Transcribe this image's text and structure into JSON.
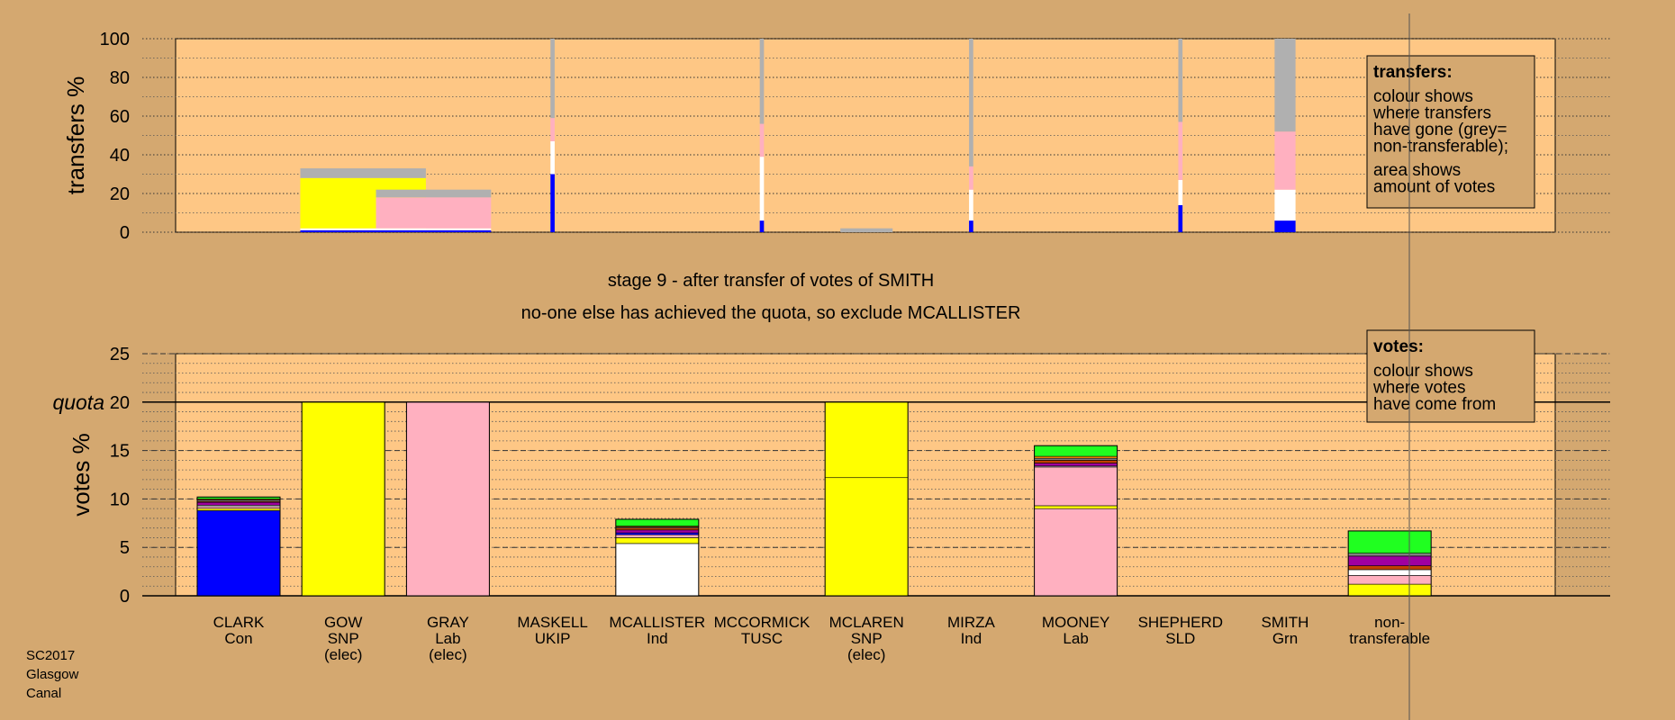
{
  "colors": {
    "background": "#d4a870",
    "plot_background": "#fec785",
    "CLARK": "#0000ff",
    "GOW": "#ffff00",
    "GRAY": "#ffb0c0",
    "MASKELL": "#a000a0",
    "MCALLISTER": "#ffffff",
    "MCCORMICK": "#c04000",
    "MCLAREN": "#ffff00",
    "MIRZA": "#808080",
    "MOONEY": "#ffb0c0",
    "SHEPHERD": "#ff9000",
    "SMITH": "#20ff20",
    "non-transferable": "#b0b0b0"
  },
  "stage_title": "stage 9 - after transfer of votes of SMITH",
  "stage_subtitle": "no-one else has achieved the quota, so exclude MCALLISTER",
  "footer": [
    "SC2017",
    "Glasgow",
    "Canal"
  ],
  "chart_data": [
    {
      "type": "bar",
      "name": "transfers",
      "ylabel": "transfers %",
      "ylim": [
        0,
        100
      ],
      "yticks": [
        0,
        20,
        40,
        60,
        80,
        100
      ],
      "grid": true,
      "legend": {
        "placement": "top-right",
        "title": "transfers:",
        "lines": [
          "colour shows",
          "where transfers",
          "have gone (grey=",
          "non-transferable);",
          "area shows",
          "amount of votes"
        ]
      },
      "note": "bar width = transfer size (votes moved), height = percentage",
      "bars": [
        {
          "source": "GOW",
          "pos": 1,
          "width": 1.2,
          "segments": [
            {
              "to": "CLARK",
              "value": 1
            },
            {
              "to": "MCALLISTER",
              "value": 1
            },
            {
              "to": "GOW",
              "value": 26
            },
            {
              "to": "non-transferable",
              "value": 5
            }
          ]
        },
        {
          "source": "GRAY",
          "pos": 2,
          "width": 1.1,
          "segments": [
            {
              "to": "CLARK",
              "value": 1
            },
            {
              "to": "MCALLISTER",
              "value": 1
            },
            {
              "to": "GRAY",
              "value": 16
            },
            {
              "to": "non-transferable",
              "value": 4
            }
          ]
        },
        {
          "source": "MASKELL",
          "pos": 3,
          "width": 0.04,
          "segments": [
            {
              "to": "CLARK",
              "value": 30
            },
            {
              "to": "MCALLISTER",
              "value": 17
            },
            {
              "to": "GRAY",
              "value": 12
            },
            {
              "to": "non-transferable",
              "value": 41
            }
          ]
        },
        {
          "source": "MCCORMICK",
          "pos": 5,
          "width": 0.04,
          "segments": [
            {
              "to": "CLARK",
              "value": 6
            },
            {
              "to": "MCALLISTER",
              "value": 33
            },
            {
              "to": "GRAY",
              "value": 17
            },
            {
              "to": "non-transferable",
              "value": 44
            }
          ]
        },
        {
          "source": "MCLAREN",
          "pos": 6,
          "width": 0.5,
          "segments": [
            {
              "to": "non-transferable",
              "value": 2
            }
          ]
        },
        {
          "source": "MIRZA",
          "pos": 7,
          "width": 0.04,
          "segments": [
            {
              "to": "CLARK",
              "value": 6
            },
            {
              "to": "MCALLISTER",
              "value": 16
            },
            {
              "to": "GRAY",
              "value": 12
            },
            {
              "to": "non-transferable",
              "value": 66
            }
          ]
        },
        {
          "source": "SHEPHERD",
          "pos": 9,
          "width": 0.04,
          "segments": [
            {
              "to": "CLARK",
              "value": 14
            },
            {
              "to": "MCALLISTER",
              "value": 13
            },
            {
              "to": "GRAY",
              "value": 30
            },
            {
              "to": "non-transferable",
              "value": 43
            }
          ]
        },
        {
          "source": "SMITH",
          "pos": 10,
          "width": 0.2,
          "segments": [
            {
              "to": "CLARK",
              "value": 6
            },
            {
              "to": "MCALLISTER",
              "value": 16
            },
            {
              "to": "GRAY",
              "value": 30
            },
            {
              "to": "non-transferable",
              "value": 48
            }
          ]
        }
      ]
    },
    {
      "type": "bar",
      "name": "votes",
      "ylabel": "votes %",
      "ylim": [
        0,
        25
      ],
      "yticks": [
        0,
        5,
        10,
        15,
        20,
        25
      ],
      "quota": 20,
      "quota_label": "quota",
      "grid": true,
      "legend": {
        "placement": "top-right",
        "title": "votes:",
        "lines": [
          "colour shows",
          "where votes",
          "have come from"
        ]
      },
      "categories": [
        {
          "name": "CLARK",
          "party": "Con",
          "status": ""
        },
        {
          "name": "GOW",
          "party": "SNP",
          "status": "(elec)"
        },
        {
          "name": "GRAY",
          "party": "Lab",
          "status": "(elec)"
        },
        {
          "name": "MASKELL",
          "party": "UKIP",
          "status": ""
        },
        {
          "name": "MCALLISTER",
          "party": "Ind",
          "status": ""
        },
        {
          "name": "MCCORMICK",
          "party": "TUSC",
          "status": ""
        },
        {
          "name": "MCLAREN",
          "party": "SNP",
          "status": "(elec)"
        },
        {
          "name": "MIRZA",
          "party": "Ind",
          "status": ""
        },
        {
          "name": "MOONEY",
          "party": "Lab",
          "status": ""
        },
        {
          "name": "SHEPHERD",
          "party": "SLD",
          "status": ""
        },
        {
          "name": "SMITH",
          "party": "Grn",
          "status": ""
        },
        {
          "name": "non-",
          "party": "transferable",
          "status": ""
        }
      ],
      "stacks": [
        [
          {
            "from": "CLARK",
            "value": 8.8
          },
          {
            "from": "GOW",
            "value": 0.2
          },
          {
            "from": "GRAY",
            "value": 0.2
          },
          {
            "from": "MCALLISTER",
            "value": 0.15
          },
          {
            "from": "MASKELL",
            "value": 0.3
          },
          {
            "from": "MCCORMICK",
            "value": 0.1
          },
          {
            "from": "MIRZA",
            "value": 0.15
          },
          {
            "from": "SHEPHERD",
            "value": 0.1
          },
          {
            "from": "SMITH",
            "value": 0.2
          }
        ],
        [
          {
            "from": "GOW",
            "value": 20
          }
        ],
        [
          {
            "from": "GRAY",
            "value": 20
          }
        ],
        [],
        [
          {
            "from": "MCALLISTER",
            "value": 5.4
          },
          {
            "from": "GOW",
            "value": 0.6
          },
          {
            "from": "GRAY",
            "value": 0.3
          },
          {
            "from": "CLARK",
            "value": 0.2
          },
          {
            "from": "MASKELL",
            "value": 0.3
          },
          {
            "from": "MCCORMICK",
            "value": 0.2
          },
          {
            "from": "MIRZA",
            "value": 0.1
          },
          {
            "from": "SHEPHERD",
            "value": 0.1
          },
          {
            "from": "SMITH",
            "value": 0.7
          }
        ],
        [],
        [
          {
            "from": "MCLAREN",
            "value": 12.2
          },
          {
            "from": "GOW",
            "value": 7.8
          }
        ],
        [],
        [
          {
            "from": "MOONEY",
            "value": 9
          },
          {
            "from": "GOW",
            "value": 0.3
          },
          {
            "from": "GRAY",
            "value": 4
          },
          {
            "from": "MCALLISTER",
            "value": 0.1
          },
          {
            "from": "MASKELL",
            "value": 0.3
          },
          {
            "from": "MCCORMICK",
            "value": 0.3
          },
          {
            "from": "MIRZA",
            "value": 0.2
          },
          {
            "from": "SHEPHERD",
            "value": 0.2
          },
          {
            "from": "SMITH",
            "value": 1.1
          }
        ],
        [],
        [],
        [
          {
            "from": "GOW",
            "value": 1.2
          },
          {
            "from": "GRAY",
            "value": 0.9
          },
          {
            "from": "MCALLISTER",
            "value": 0.6
          },
          {
            "from": "MCCORMICK",
            "value": 0.4
          },
          {
            "from": "MASKELL",
            "value": 1.0
          },
          {
            "from": "MIRZA",
            "value": 0.3
          },
          {
            "from": "SMITH",
            "value": 2.3
          }
        ]
      ]
    }
  ]
}
